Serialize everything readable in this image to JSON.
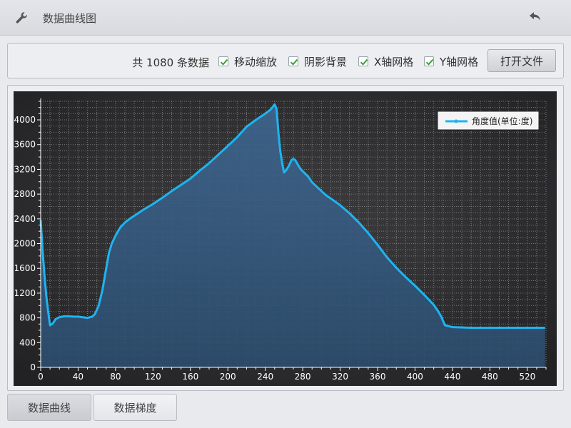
{
  "header": {
    "title": "数据曲线图",
    "wrench_icon": "wrench-icon",
    "back_icon": "back-arrow-icon"
  },
  "toolbar": {
    "count_text": "共 1080 条数据",
    "checkboxes": [
      {
        "label": "移动缩放",
        "checked": true
      },
      {
        "label": "阴影背景",
        "checked": true
      },
      {
        "label": "X轴网格",
        "checked": true
      },
      {
        "label": "Y轴网格",
        "checked": true
      }
    ],
    "open_file": "打开文件"
  },
  "tabs": [
    {
      "label": "数据曲线",
      "active": true
    },
    {
      "label": "数据梯度",
      "active": false
    }
  ],
  "colors": {
    "line": "#1eb4f0",
    "plot_bg": "#2e2e30",
    "fill": "#3a5f85"
  },
  "chart_data": {
    "type": "area",
    "legend": "角度值(单位:度)",
    "legend_position": "top-right",
    "xlim": [
      0,
      540
    ],
    "ylim": [
      0,
      4300
    ],
    "x_ticks": [
      0,
      40,
      80,
      120,
      160,
      200,
      240,
      280,
      320,
      360,
      400,
      440,
      480,
      520
    ],
    "y_ticks": [
      0,
      400,
      800,
      1200,
      1600,
      2000,
      2400,
      2800,
      3200,
      3600,
      4000
    ],
    "grid": true,
    "x": [
      0,
      2,
      4,
      6,
      8,
      10,
      13,
      16,
      20,
      25,
      30,
      35,
      40,
      45,
      50,
      55,
      58,
      62,
      66,
      70,
      73,
      76,
      80,
      85,
      90,
      95,
      100,
      110,
      120,
      130,
      140,
      150,
      160,
      170,
      180,
      190,
      200,
      210,
      220,
      230,
      240,
      246,
      250,
      252,
      254,
      256,
      258,
      260,
      262,
      265,
      268,
      270,
      272,
      275,
      278,
      282,
      286,
      290,
      295,
      300,
      305,
      310,
      320,
      330,
      340,
      350,
      360,
      370,
      380,
      390,
      400,
      410,
      420,
      425,
      428,
      432,
      440,
      460,
      480,
      500,
      520,
      539
    ],
    "y": [
      2380,
      1900,
      1500,
      1150,
      900,
      680,
      710,
      780,
      810,
      825,
      825,
      820,
      820,
      810,
      800,
      820,
      860,
      1000,
      1250,
      1600,
      1850,
      2000,
      2130,
      2260,
      2340,
      2400,
      2450,
      2550,
      2640,
      2740,
      2850,
      2950,
      3050,
      3180,
      3300,
      3440,
      3580,
      3720,
      3890,
      4000,
      4100,
      4170,
      4250,
      4180,
      3800,
      3500,
      3300,
      3150,
      3180,
      3250,
      3350,
      3370,
      3350,
      3270,
      3200,
      3140,
      3080,
      2990,
      2920,
      2850,
      2780,
      2730,
      2620,
      2490,
      2340,
      2170,
      1980,
      1780,
      1610,
      1460,
      1320,
      1170,
      1010,
      900,
      820,
      680,
      650,
      640,
      640,
      640,
      640,
      640
    ]
  }
}
